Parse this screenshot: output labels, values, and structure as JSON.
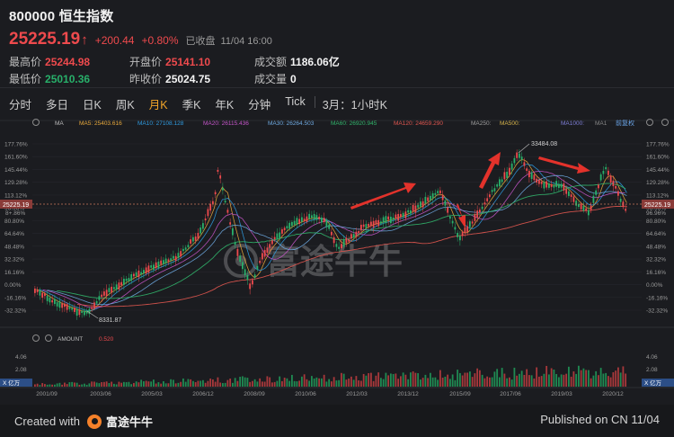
{
  "header": {
    "code_name": "800000 恒生指数",
    "price": "25225.19",
    "change": "+200.44",
    "change_pct": "+0.80%",
    "status": "已收盘",
    "time": "11/04 16:00"
  },
  "stats": {
    "high_label": "最高价",
    "high": "25244.98",
    "low_label": "最低价",
    "low": "25010.36",
    "open_label": "开盘价",
    "open": "25141.10",
    "prev_label": "昨收价",
    "prev": "25024.75",
    "turnover_label": "成交额",
    "turnover": "1186.06亿",
    "volume_label": "成交量",
    "volume": "0"
  },
  "tabs": [
    "分时",
    "多日",
    "日K",
    "周K",
    "月K",
    "季K",
    "年K",
    "分钟",
    "Tick",
    "3月：1小时K"
  ],
  "active_tab": "月K",
  "ma_bar": {
    "ma_label": "MA",
    "items": [
      {
        "label": "MA5: 25403.616",
        "color": "#e8a93c"
      },
      {
        "label": "MA10: 27108.128",
        "color": "#2f9be0"
      },
      {
        "label": "MA20: 26115.436",
        "color": "#c455c8"
      },
      {
        "label": "MA30: 26264.503",
        "color": "#6ea9e0"
      },
      {
        "label": "MA60: 26920.945",
        "color": "#31b36a"
      },
      {
        "label": "MA120: 24659.290",
        "color": "#e0564f"
      },
      {
        "label": "MA250:",
        "color": "#9e9e9e"
      },
      {
        "label": "MA500:",
        "color": "#d8b54b"
      },
      {
        "label": "MA1000:",
        "color": "#7f7fd8"
      },
      {
        "label": "MA1",
        "color": "#888888"
      }
    ],
    "adjust_label": "前复权"
  },
  "axis": {
    "left_ticks": [
      "177.76%",
      "161.60%",
      "145.44%",
      "129.28%",
      "113.12%",
      "96.96%",
      "80.80%",
      "64.64%",
      "48.48%",
      "32.32%",
      "16.16%",
      "0.00%",
      "-16.16%",
      "-32.32%"
    ],
    "right_ticks": [
      "177.76%",
      "161.60%",
      "145.44%",
      "129.28%",
      "113.12%",
      "96.96%",
      "80.80%",
      "64.64%",
      "48.48%",
      "32.32%",
      "16.16%",
      "0.00%",
      "-16.16%",
      "-32.32%"
    ],
    "current_left": "25225.19",
    "current_right": "25225.19",
    "current_pct_left": "8+.86%",
    "current_pct_right": "96.96%",
    "max_label": "33484.08",
    "min_label": "8331.87",
    "x_dates": [
      "2001/09",
      "2003/06",
      "2005/03",
      "2006/12",
      "2008/09",
      "2010/06",
      "2012/03",
      "2013/12",
      "2015/09",
      "2017/06",
      "2019/03",
      "2020/12"
    ]
  },
  "volume_panel": {
    "label": "AMOUNT",
    "value": "0.520",
    "ticks": [
      "4.06",
      "2.08"
    ],
    "unit": "X 亿万"
  },
  "watermark": "富途牛牛",
  "footer": {
    "created_with": "Created with",
    "brand": "富途牛牛",
    "published": "Published on CN 11/04"
  },
  "colors": {
    "up": "#ee4a4d",
    "down": "#28b06a",
    "accent": "#f0a429",
    "background": "#1b1c20"
  }
}
